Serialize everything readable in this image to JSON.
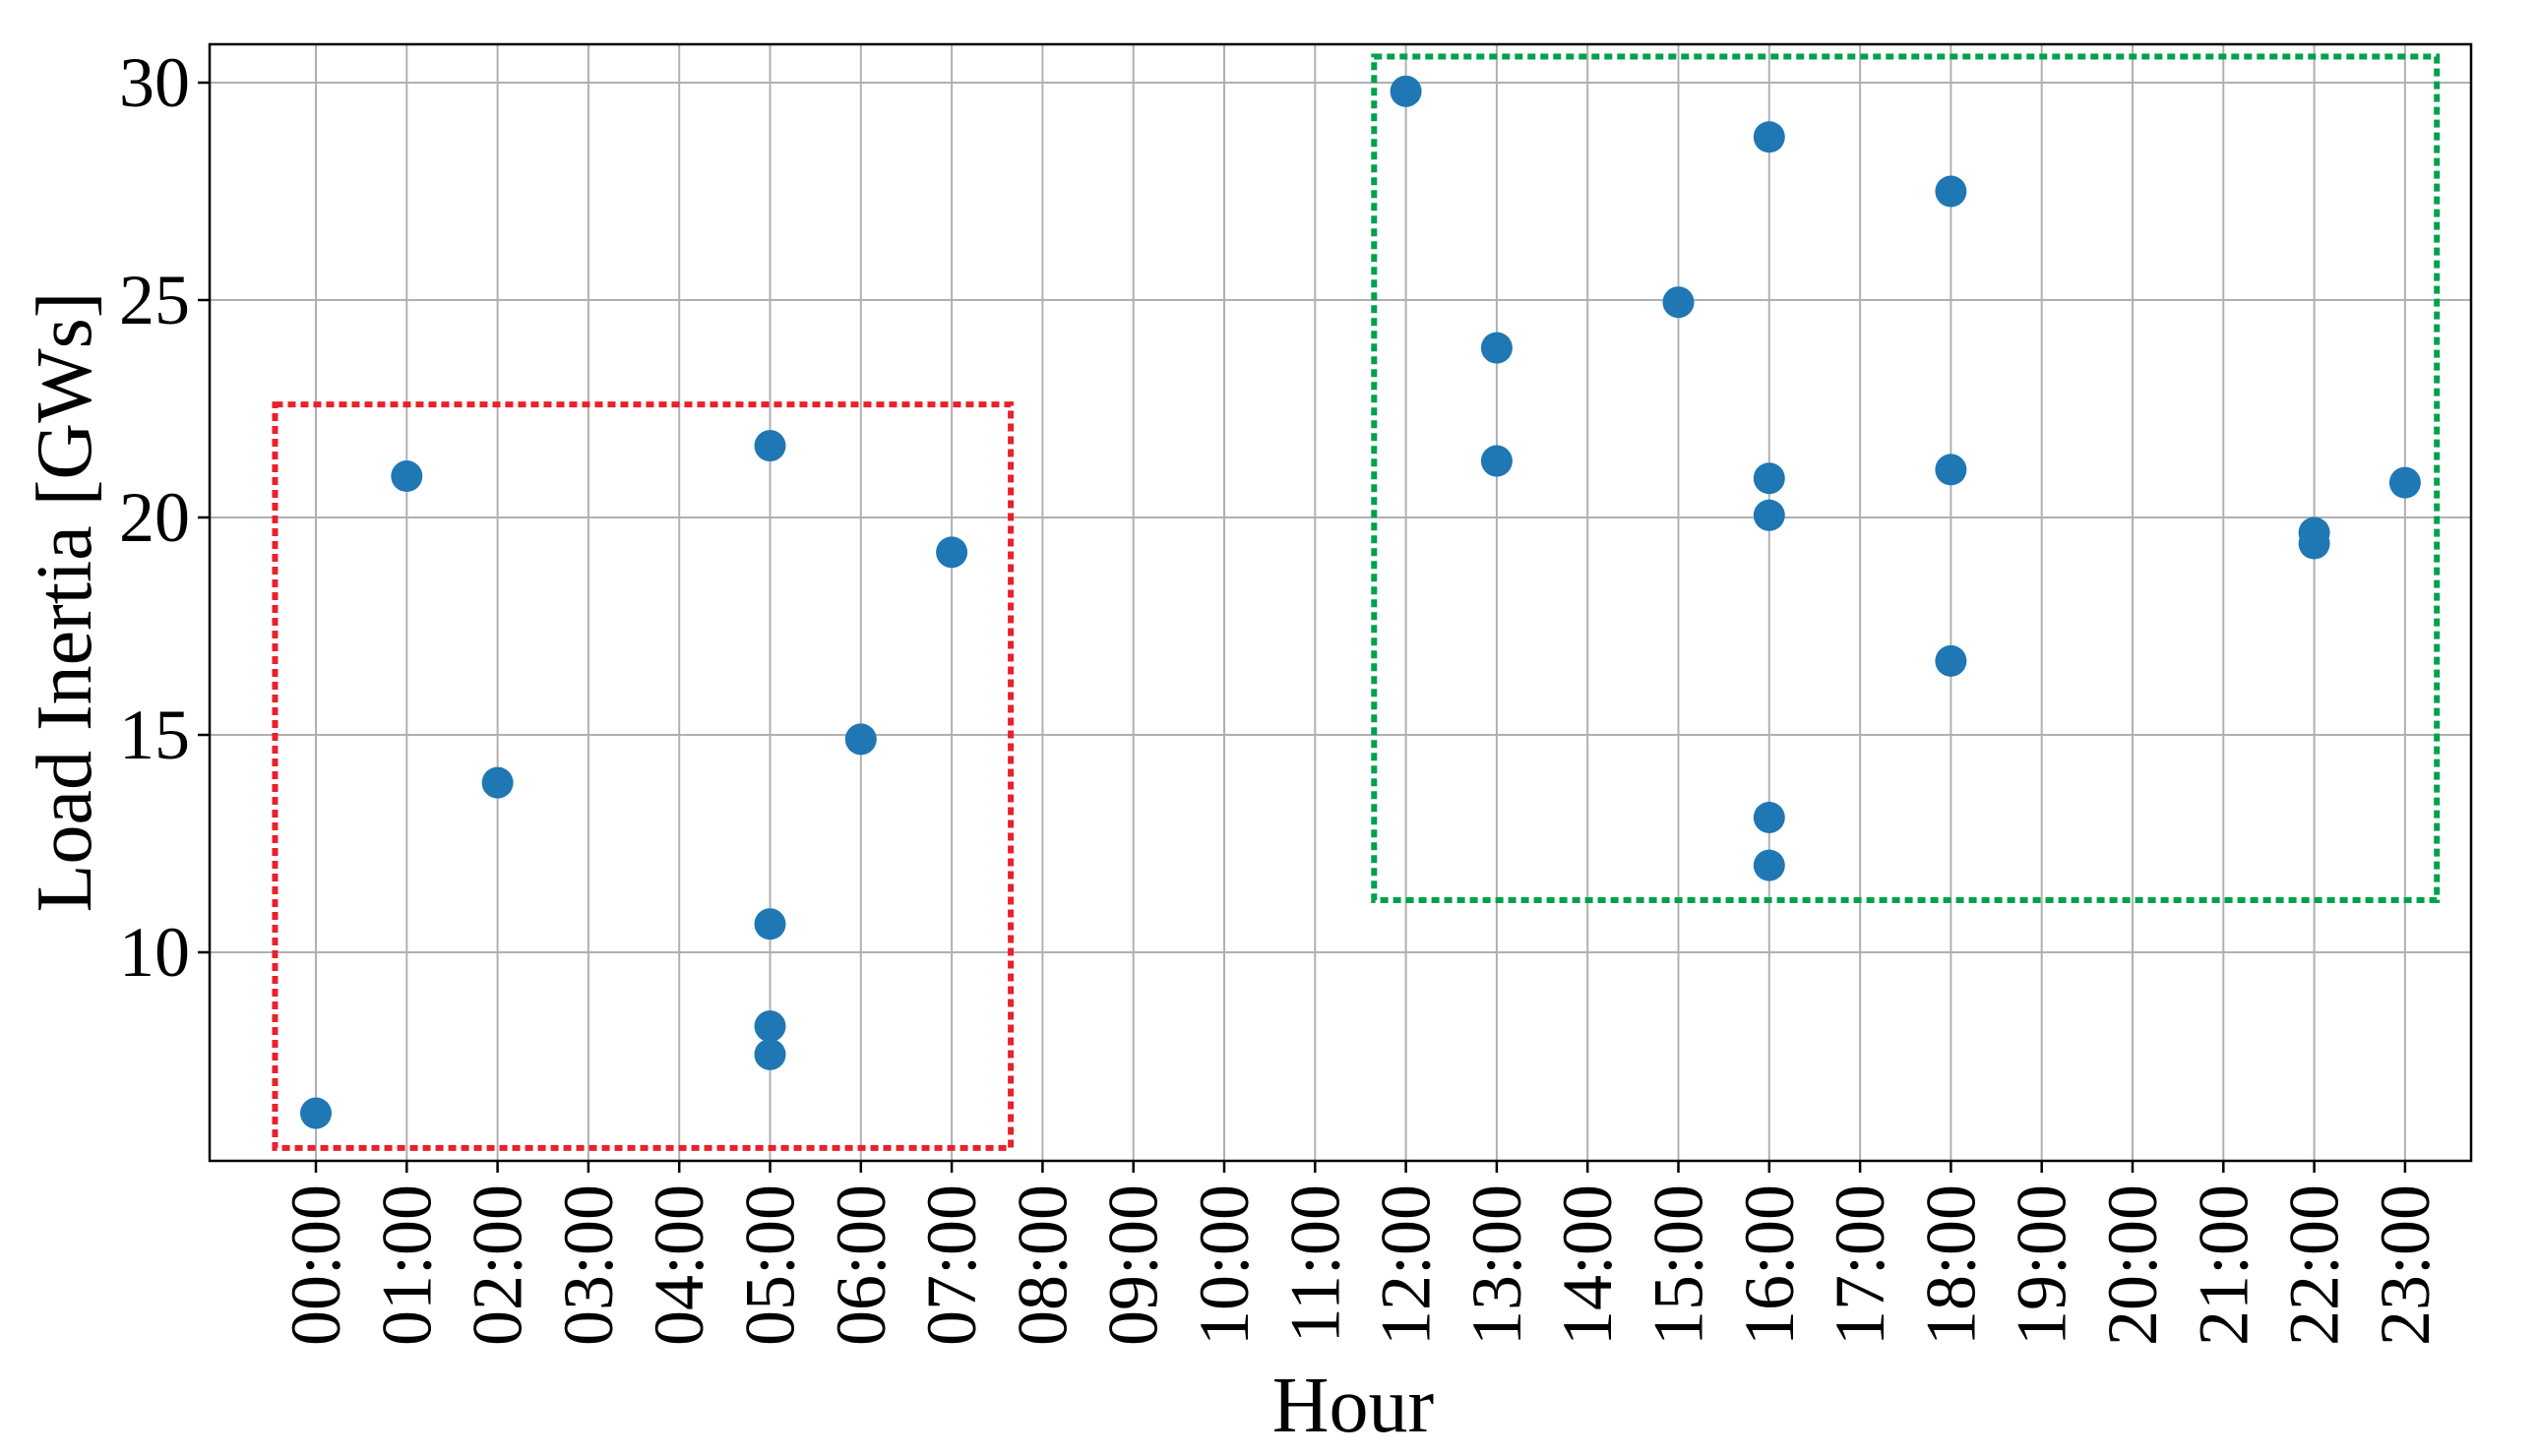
{
  "chart_data": {
    "type": "scatter",
    "xlabel": "Hour",
    "ylabel": "Load Inertia [GWs]",
    "title": "",
    "grid": true,
    "categories": [
      "00:00",
      "01:00",
      "02:00",
      "03:00",
      "04:00",
      "05:00",
      "06:00",
      "07:00",
      "08:00",
      "09:00",
      "10:00",
      "11:00",
      "12:00",
      "13:00",
      "14:00",
      "15:00",
      "16:00",
      "17:00",
      "18:00",
      "19:00",
      "20:00",
      "21:00",
      "22:00",
      "23:00"
    ],
    "yticks": [
      "10",
      "15",
      "20",
      "25",
      "30"
    ],
    "ylim": [
      5.2,
      30.9
    ],
    "marker_color": "#1f77b4",
    "points": [
      {
        "x": "00:00",
        "y": 6.3
      },
      {
        "x": "01:00",
        "y": 20.95
      },
      {
        "x": "02:00",
        "y": 13.9
      },
      {
        "x": "05:00",
        "y": 21.65
      },
      {
        "x": "05:00",
        "y": 10.65
      },
      {
        "x": "05:00",
        "y": 8.3
      },
      {
        "x": "05:00",
        "y": 7.65
      },
      {
        "x": "06:00",
        "y": 14.9
      },
      {
        "x": "07:00",
        "y": 19.2
      },
      {
        "x": "12:00",
        "y": 29.8
      },
      {
        "x": "13:00",
        "y": 23.9
      },
      {
        "x": "13:00",
        "y": 21.3
      },
      {
        "x": "15:00",
        "y": 24.95
      },
      {
        "x": "16:00",
        "y": 28.75
      },
      {
        "x": "16:00",
        "y": 20.9
      },
      {
        "x": "16:00",
        "y": 20.05
      },
      {
        "x": "16:00",
        "y": 13.1
      },
      {
        "x": "16:00",
        "y": 12.0
      },
      {
        "x": "18:00",
        "y": 27.5
      },
      {
        "x": "18:00",
        "y": 21.1
      },
      {
        "x": "18:00",
        "y": 16.7
      },
      {
        "x": "22:00",
        "y": 19.65
      },
      {
        "x": "22:00",
        "y": 19.4
      },
      {
        "x": "23:00",
        "y": 20.8
      }
    ],
    "regions": [
      {
        "color": "#e8212a",
        "x_from": -0.45,
        "x_to": 7.65,
        "y_from": 5.5,
        "y_to": 22.6
      },
      {
        "color": "#00a14b",
        "x_from": 11.65,
        "x_to": 23.35,
        "y_from": 11.2,
        "y_to": 30.6
      }
    ]
  }
}
